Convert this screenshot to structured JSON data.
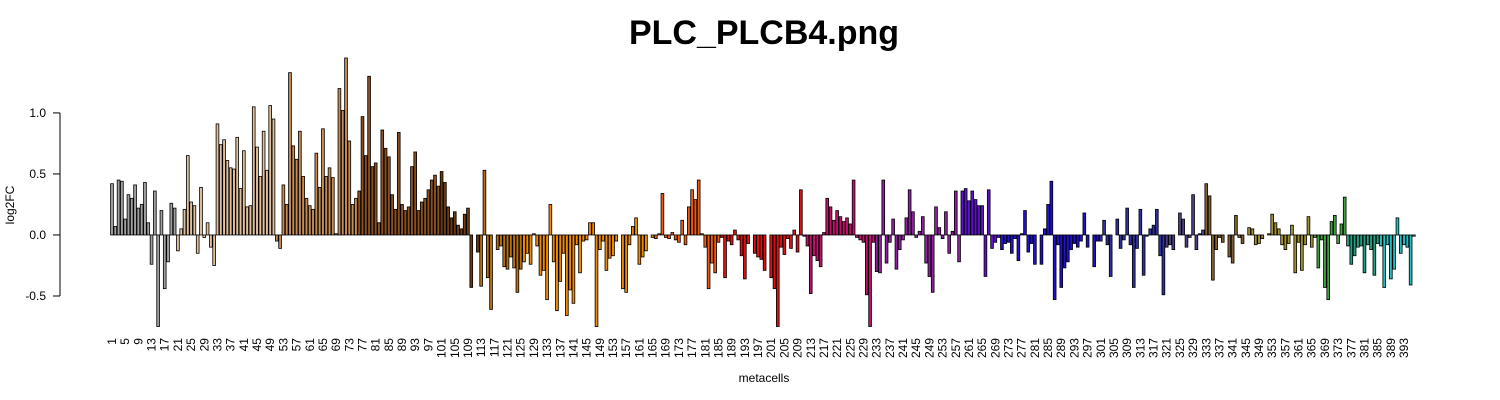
{
  "chart_data": {
    "type": "bar",
    "title": "PLC_PLCB4.png",
    "xlabel": "metacells",
    "ylabel": "log2FC",
    "ylim": [
      -0.75,
      1.45
    ],
    "yticks": [
      {
        "value": -0.5,
        "label": "-0.5"
      },
      {
        "value": 0,
        "label": "0.0"
      },
      {
        "value": 0.5,
        "label": "0.5"
      },
      {
        "value": 1,
        "label": "1.0"
      }
    ],
    "categories": [
      "1",
      null,
      null,
      null,
      "5",
      null,
      null,
      null,
      "9",
      null,
      null,
      null,
      "13",
      null,
      null,
      null,
      "17",
      null,
      null,
      null,
      "21",
      null,
      null,
      null,
      "25",
      null,
      null,
      null,
      "29",
      null,
      null,
      null,
      "33",
      null,
      null,
      null,
      "37",
      null,
      null,
      null,
      "41",
      null,
      null,
      null,
      "45",
      null,
      null,
      null,
      "49",
      null,
      null,
      null,
      "53",
      null,
      null,
      null,
      "57",
      null,
      null,
      null,
      "61",
      null,
      null,
      null,
      "65",
      null,
      null,
      null,
      "69",
      null,
      null,
      null,
      "73",
      null,
      null,
      null,
      "77",
      null,
      null,
      null,
      "81",
      null,
      null,
      null,
      "85",
      null,
      null,
      null,
      "89",
      null,
      null,
      null,
      "93",
      null,
      null,
      null,
      "97",
      null,
      null,
      null,
      "101",
      null,
      null,
      null,
      "105",
      null,
      null,
      null,
      "109",
      null,
      null,
      null,
      "113",
      null,
      null,
      null,
      "117",
      null,
      null,
      null,
      "121",
      null,
      null,
      null,
      "125",
      null,
      null,
      null,
      "129",
      null,
      null,
      null,
      "133",
      null,
      null,
      null,
      "137",
      null,
      null,
      null,
      "141",
      null,
      null,
      null,
      "145",
      null,
      null,
      null,
      "149",
      null,
      null,
      null,
      "153",
      null,
      null,
      null,
      "157",
      null,
      null,
      null,
      "161",
      null,
      null,
      null,
      "165",
      null,
      null,
      null,
      "169",
      null,
      null,
      null,
      "173",
      null,
      null,
      null,
      "177",
      null,
      null,
      null,
      "181",
      null,
      null,
      null,
      "185",
      null,
      null,
      null,
      "189",
      null,
      null,
      null,
      "193",
      null,
      null,
      null,
      "197",
      null,
      null,
      null,
      "201",
      null,
      null,
      null,
      "205",
      null,
      null,
      null,
      "209",
      null,
      null,
      null,
      "213",
      null,
      null,
      null,
      "217",
      null,
      null,
      null,
      "221",
      null,
      null,
      null,
      "225",
      null,
      null,
      null,
      "229",
      null,
      null,
      null,
      "233",
      null,
      null,
      null,
      "237",
      null,
      null,
      null,
      "241",
      null,
      null,
      null,
      "245",
      null,
      null,
      null,
      "249",
      null,
      null,
      null,
      "253",
      null,
      null,
      null,
      "257",
      null,
      null,
      null,
      "261",
      null,
      null,
      null,
      "265",
      null,
      null,
      null,
      "269",
      null,
      null,
      null,
      "273",
      null,
      null,
      null,
      "277",
      null,
      null,
      null,
      "281",
      null,
      null,
      null,
      "285",
      null,
      null,
      null,
      "289",
      null,
      null,
      null,
      "293",
      null,
      null,
      null,
      "297",
      null,
      null,
      null,
      "301",
      null,
      null,
      null,
      "305",
      null,
      null,
      null,
      "309",
      null,
      null,
      null,
      "313",
      null,
      null,
      null,
      "317",
      null,
      null,
      null,
      "321",
      null,
      null,
      null,
      "325",
      null,
      null,
      null,
      "329",
      null,
      null,
      null,
      "333",
      null,
      null,
      null,
      "337",
      null,
      null,
      null,
      "341",
      null,
      null,
      null,
      "345",
      null,
      null,
      null,
      "349",
      null,
      null,
      null,
      "353",
      null,
      null,
      null,
      "357",
      null,
      null,
      null,
      "361",
      null,
      null,
      null,
      "365",
      null,
      null,
      null,
      "369",
      null,
      null,
      null,
      "373",
      null,
      null,
      null,
      "377",
      null,
      null,
      null,
      "381",
      null,
      null,
      null,
      "385",
      null,
      null,
      null,
      "389",
      null,
      null,
      null,
      "393",
      null,
      null,
      null
    ],
    "values": [
      0.42,
      0.07,
      0.45,
      0.44,
      0.13,
      0.33,
      0.3,
      0.41,
      0.22,
      0.25,
      0.43,
      0.1,
      -0.24,
      0.36,
      -0.75,
      0.2,
      -0.44,
      -0.22,
      0.26,
      0.22,
      -0.13,
      0.05,
      0.21,
      0.65,
      0.27,
      0.24,
      -0.15,
      0.39,
      -0.02,
      0.1,
      -0.1,
      -0.25,
      0.91,
      0.74,
      0.78,
      0.61,
      0.55,
      0.54,
      0.8,
      0.38,
      0.69,
      0.23,
      0.24,
      1.05,
      0.72,
      0.48,
      0.85,
      0.53,
      1.06,
      0.95,
      -0.05,
      -0.11,
      0.41,
      0.25,
      1.33,
      0.73,
      0.62,
      0.85,
      0.48,
      0.3,
      0.24,
      0.21,
      0.67,
      0.39,
      0.87,
      0.48,
      0.55,
      0.47,
      0.01,
      1.2,
      1.02,
      1.45,
      0.77,
      0.25,
      0.3,
      0.36,
      0.97,
      0.65,
      1.3,
      0.56,
      0.59,
      0.1,
      0.86,
      0.71,
      0.64,
      0.33,
      0.21,
      0.84,
      0.25,
      0.2,
      0.23,
      0.56,
      0.68,
      0.2,
      0.27,
      0.3,
      0.37,
      0.45,
      0.49,
      0.4,
      0.52,
      0.43,
      0.23,
      0.14,
      0.19,
      0.08,
      0.05,
      0.17,
      0.22,
      -0.43,
      0.0,
      -0.14,
      -0.42,
      0.53,
      -0.35,
      -0.61,
      0.0,
      -0.12,
      -0.09,
      -0.26,
      -0.28,
      -0.18,
      -0.27,
      -0.47,
      -0.28,
      -0.22,
      -0.15,
      -0.24,
      0.01,
      -0.09,
      -0.33,
      -0.29,
      -0.53,
      0.25,
      -0.22,
      -0.62,
      -0.38,
      -0.15,
      -0.66,
      -0.45,
      -0.56,
      -0.08,
      -0.31,
      -0.05,
      -0.04,
      0.1,
      0.1,
      -0.75,
      -0.12,
      -0.05,
      -0.29,
      -0.19,
      -0.17,
      -0.05,
      0.0,
      -0.44,
      -0.47,
      -0.08,
      0.07,
      0.14,
      -0.24,
      -0.18,
      -0.13,
      0.0,
      -0.02,
      -0.03,
      0.01,
      0.34,
      -0.02,
      -0.03,
      0.02,
      -0.04,
      -0.06,
      0.12,
      -0.08,
      0.23,
      0.37,
      0.29,
      0.45,
      0.01,
      -0.1,
      -0.44,
      -0.23,
      -0.31,
      -0.06,
      -0.02,
      -0.35,
      -0.05,
      -0.08,
      0.04,
      -0.04,
      -0.17,
      -0.36,
      -0.07,
      0.0,
      -0.15,
      -0.18,
      -0.2,
      -0.29,
      0.0,
      -0.35,
      -0.44,
      -0.75,
      -0.1,
      -0.16,
      -0.03,
      -0.11,
      0.04,
      -0.14,
      0.37,
      -0.01,
      -0.09,
      -0.48,
      -0.17,
      -0.21,
      -0.26,
      0.02,
      0.3,
      0.23,
      0.12,
      0.2,
      0.15,
      0.11,
      0.14,
      0.09,
      0.45,
      -0.02,
      -0.04,
      -0.06,
      -0.49,
      -0.75,
      -0.06,
      -0.3,
      -0.31,
      0.45,
      -0.23,
      -0.06,
      0.13,
      -0.28,
      -0.12,
      -0.04,
      0.14,
      0.37,
      0.19,
      -0.02,
      0.03,
      0.15,
      -0.23,
      -0.34,
      -0.47,
      0.23,
      0.06,
      -0.03,
      0.19,
      -0.15,
      0.03,
      0.36,
      -0.22,
      0.36,
      0.38,
      0.28,
      0.36,
      0.29,
      0.24,
      0.24,
      -0.34,
      0.37,
      -0.11,
      -0.06,
      -0.02,
      -0.12,
      -0.07,
      -0.06,
      -0.15,
      -0.03,
      -0.21,
      0.01,
      0.2,
      -0.14,
      -0.07,
      -0.24,
      0.0,
      -0.24,
      0.05,
      0.25,
      0.44,
      -0.53,
      -0.08,
      -0.43,
      -0.27,
      -0.22,
      -0.12,
      -0.07,
      -0.1,
      -0.05,
      0.18,
      -0.1,
      0.0,
      -0.26,
      -0.05,
      -0.05,
      0.12,
      -0.08,
      -0.34,
      0.0,
      0.13,
      -0.11,
      -0.04,
      0.22,
      -0.08,
      -0.43,
      -0.11,
      0.21,
      -0.33,
      -0.01,
      0.05,
      0.08,
      0.21,
      -0.17,
      -0.49,
      -0.1,
      -0.08,
      -0.12,
      0.0,
      0.18,
      0.13,
      -0.1,
      -0.02,
      0.33,
      -0.12,
      0.01,
      0.04,
      0.42,
      0.32,
      -0.37,
      -0.12,
      -0.02,
      -0.06,
      0.0,
      -0.18,
      -0.23,
      0.16,
      -0.02,
      -0.07,
      0.0,
      0.06,
      0.05,
      -0.08,
      -0.07,
      -0.03,
      0.0,
      0.01,
      0.17,
      0.1,
      0.05,
      -0.08,
      -0.12,
      -0.07,
      0.08,
      -0.31,
      -0.06,
      -0.29,
      -0.08,
      0.15,
      -0.1,
      -0.02,
      -0.27,
      -0.04,
      -0.43,
      -0.53,
      0.11,
      0.16,
      -0.07,
      0.09,
      0.31,
      -0.09,
      -0.24,
      -0.17,
      -0.1,
      -0.09,
      -0.31,
      -0.08,
      -0.12,
      -0.33,
      -0.07,
      -0.09,
      -0.43,
      -0.08,
      -0.36,
      -0.28,
      0.14,
      -0.15,
      -0.08,
      -0.1,
      -0.41,
      -0.01
    ],
    "colors": [
      "#a0a0a0",
      "#a0a0a0",
      "#a0a0a0",
      "#a0a0a0",
      "#a0a0a0",
      "#a0a0a0",
      "#a0a0a0",
      "#a0a0a0",
      "#a0a0a0",
      "#a0a0a0",
      "#a0a0a0",
      "#a0a0a0",
      "#a0a0a0",
      "#a0a0a0",
      "#a0a0a0",
      "#a0a0a0",
      "#a0a0a0",
      "#a0a0a0",
      "#a0a0a0",
      "#a0a0a0",
      "#e2c19c",
      "#e2c19c",
      "#e2c19c",
      "#e2c19c",
      "#e2c19c",
      "#e2c19c",
      "#e2c19c",
      "#e2c19c",
      "#e2c19c",
      "#e2c19c",
      "#e2c19c",
      "#e2c19c",
      "#e2c19c",
      "#e2c19c",
      "#e2c19c",
      "#e2c19c",
      "#e2c19c",
      "#e2c19c",
      "#e2c19c",
      "#e2c19c",
      "#e2c19c",
      "#e2c19c",
      "#e2c19c",
      "#e2c19c",
      "#e2c19c",
      "#e2c19c",
      "#e2c19c",
      "#e2c19c",
      "#e2c19c",
      "#e2c19c",
      "#c68c55",
      "#c68c55",
      "#c68c55",
      "#c68c55",
      "#c68c55",
      "#c68c55",
      "#c68c55",
      "#c68c55",
      "#c68c55",
      "#c68c55",
      "#c68c55",
      "#c68c55",
      "#c68c55",
      "#c68c55",
      "#c68c55",
      "#c68c55",
      "#c68c55",
      "#c68c55",
      "#c68c55",
      "#c68c55",
      "#c68c55",
      "#c68c55",
      "#c68c55",
      "#c68c55",
      "#c68c55",
      "#8b4f20",
      "#8b4f20",
      "#8b4f20",
      "#8b4f20",
      "#8b4f20",
      "#8b4f20",
      "#8b4f20",
      "#8b4f20",
      "#8b4f20",
      "#8b4f20",
      "#8b4f20",
      "#8b4f20",
      "#8b4f20",
      "#8b4f20",
      "#8b4f20",
      "#8b4f20",
      "#8b4f20",
      "#8b4f20",
      "#8b4f20",
      "#8b4f20",
      "#8b4f20",
      "#8b4f20",
      "#8b4f20",
      "#8b4f20",
      "#8b4f20",
      "#6b3a10",
      "#6b3a10",
      "#6b3a10",
      "#6b3a10",
      "#6b3a10",
      "#6b3a10",
      "#6b3a10",
      "#6b3a10",
      "#6b3a10",
      "#6b3a10",
      "#6b3a10",
      "#6b3a10",
      "#b87010",
      "#b87010",
      "#b87010",
      "#b87010",
      "#b87010",
      "#b87010",
      "#b87010",
      "#b87010",
      "#b87010",
      "#b87010",
      "#b87010",
      "#b87010",
      "#b87010",
      "#f08a00",
      "#f08a00",
      "#f08a00",
      "#f08a00",
      "#f08a00",
      "#f08a00",
      "#f08a00",
      "#f08a00",
      "#f08a00",
      "#f08a00",
      "#f08a00",
      "#f08a00",
      "#f08a00",
      "#f08a00",
      "#f08a00",
      "#f08a00",
      "#f08a00",
      "#f08a00",
      "#f08a00",
      "#f08a00",
      "#f08a00",
      "#f08a00",
      "#f08a00",
      "#f08a00",
      "#f08a00",
      "#f08a00",
      "#f08a00",
      "#f08a00",
      "#f08a00",
      "#f08a00",
      "#f08a00",
      "#f08a00",
      "#f08a00",
      "#f08a00",
      "#f08a00",
      "#f08a00",
      "#f08a00",
      "#f08a00",
      "#f08a00",
      "#f08a00",
      "#f05a10",
      "#f05a10",
      "#f05a10",
      "#f05a10",
      "#f05a10",
      "#f05a10",
      "#f05a10",
      "#f05a10",
      "#f05a10",
      "#f05a10",
      "#f05a10",
      "#f05a10",
      "#f05a10",
      "#f05a10",
      "#f05a10",
      "#f05a10",
      "#f05a10",
      "#f05a10",
      "#f05a10",
      "#f05a10",
      "#e01010",
      "#e01010",
      "#e01010",
      "#e01010",
      "#e01010",
      "#e01010",
      "#e01010",
      "#e01010",
      "#e01010",
      "#e01010",
      "#e01010",
      "#e01010",
      "#e01010",
      "#e01010",
      "#e01010",
      "#e01010",
      "#e01010",
      "#e01010",
      "#e01010",
      "#e01010",
      "#e01010",
      "#e01010",
      "#e01010",
      "#e01010",
      "#e01010",
      "#c0106a",
      "#c0106a",
      "#c0106a",
      "#c0106a",
      "#c0106a",
      "#c0106a",
      "#c0106a",
      "#c0106a",
      "#c0106a",
      "#c0106a",
      "#c0106a",
      "#c0106a",
      "#c0106a",
      "#c0106a",
      "#c0106a",
      "#c0106a",
      "#c0106a",
      "#c0106a",
      "#c0106a",
      "#c0106a",
      "#c0106a",
      "#c0106a",
      "#9020a0",
      "#9020a0",
      "#9020a0",
      "#9020a0",
      "#9020a0",
      "#9020a0",
      "#9020a0",
      "#9020a0",
      "#9020a0",
      "#9020a0",
      "#9020a0",
      "#9020a0",
      "#9020a0",
      "#9020a0",
      "#9020a0",
      "#9020a0",
      "#9020a0",
      "#9020a0",
      "#9020a0",
      "#9020a0",
      "#9020a0",
      "#9020a0",
      "#9020a0",
      "#9020a0",
      "#9020a0",
      "#9020a0",
      "#6010d0",
      "#6010d0",
      "#6010d0",
      "#6010d0",
      "#6010d0",
      "#6010d0",
      "#6010d0",
      "#6010d0",
      "#6010d0",
      "#6010d0",
      "#6010d0",
      "#6010d0",
      "#2010d0",
      "#2010d0",
      "#2010d0",
      "#2010d0",
      "#2010d0",
      "#2010d0",
      "#2010d0",
      "#2010d0",
      "#2010d0",
      "#2010d0",
      "#2010d0",
      "#2010d0",
      "#2010d0",
      "#2010d0",
      "#2010d0",
      "#2010d0",
      "#2010d0",
      "#2010d0",
      "#2010d0",
      "#2010d0",
      "#2010d0",
      "#2010d0",
      "#2010d0",
      "#2010d0",
      "#2010d0",
      "#2010d0",
      "#2010d0",
      "#2010d0",
      "#2010d0",
      "#2010d0",
      "#3030a0",
      "#3030a0",
      "#3030a0",
      "#3030a0",
      "#3030a0",
      "#3030a0",
      "#3030a0",
      "#3030a0",
      "#3030a0",
      "#3030a0",
      "#3030a0",
      "#3030a0",
      "#3030a0",
      "#3030a0",
      "#3030a0",
      "#3030a0",
      "#3030a0",
      "#3030a0",
      "#3030a0",
      "#3030a0",
      "#504080",
      "#504080",
      "#504080",
      "#504080",
      "#504080",
      "#504080",
      "#504080",
      "#504080",
      "#504080",
      "#504080",
      "#504080",
      "#504080",
      "#806030",
      "#806030",
      "#806030",
      "#806030",
      "#806030",
      "#806030",
      "#806030",
      "#806030",
      "#806030",
      "#806030",
      "#806030",
      "#806030",
      "#806030",
      "#a09030",
      "#a09030",
      "#a09030",
      "#a09030",
      "#a09030",
      "#a09030",
      "#a09030",
      "#a09030",
      "#a09030",
      "#a09030",
      "#a09030",
      "#a09030",
      "#a09030",
      "#a09030",
      "#a09030",
      "#a09030",
      "#a09030",
      "#a09030",
      "#a09030",
      "#a09030",
      "#40a040",
      "#40a040",
      "#40a040",
      "#40a040",
      "#40a040",
      "#40a040",
      "#40a040",
      "#40a040",
      "#40a040",
      "#40a040",
      "#20a080",
      "#20a080",
      "#20a080",
      "#20a080",
      "#20a080",
      "#20a080",
      "#20a080",
      "#20a080",
      "#20a080",
      "#20a080",
      "#20c0c0",
      "#20c0c0",
      "#20c0c0",
      "#20c0c0",
      "#20c0c0",
      "#20c0c0",
      "#20c0c0",
      "#20c0c0",
      "#20c0c0",
      "#20c0c0",
      "#20c0c0"
    ]
  }
}
